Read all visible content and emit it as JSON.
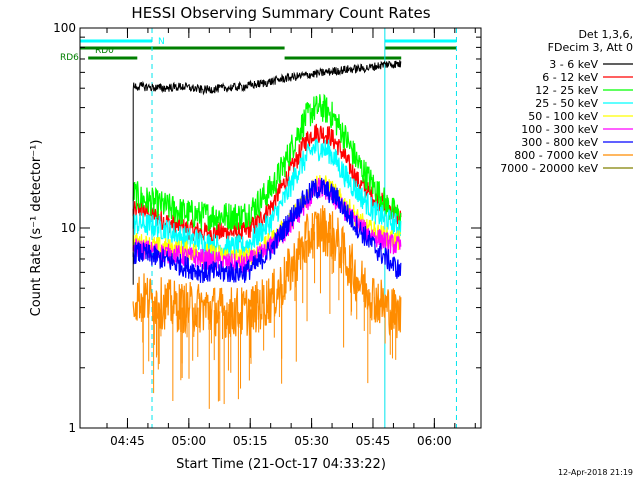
{
  "chart_data": {
    "type": "line",
    "title": "HESSI Observing Summary Count Rates",
    "xlabel": "Start Time (21-Oct-17 04:33:22)",
    "ylabel": "Count Rate (s⁻¹ detector⁻¹)",
    "y_scale": "log",
    "ylim": [
      1,
      100
    ],
    "xlim_minutes_since_0433": [
      0,
      98
    ],
    "x_tick_labels": [
      "04:45",
      "05:00",
      "05:15",
      "05:30",
      "05:45",
      "06:00"
    ],
    "x_tick_minutes": [
      11.6,
      26.6,
      41.6,
      56.6,
      71.6,
      86.6
    ],
    "y_tick_labels": [
      "1",
      "10",
      "100"
    ],
    "y_tick_values": [
      1,
      10,
      100
    ],
    "legend_header": [
      "Det 1,3,6,",
      "FDecim 3, Att 0"
    ],
    "legend_position": "right",
    "footer_timestamp": "12-Apr-2018 21:19",
    "flag_labels": {
      "n": "N",
      "rd0": "RD0",
      "rd6": "RD6"
    },
    "vertical_lines": {
      "solid_cyan_minutes": [
        0,
        74.5
      ],
      "dashed_cyan_minutes": [
        17.6,
        92
      ]
    },
    "series": [
      {
        "name": "3 - 6 keV",
        "color": "#000000",
        "x": [
          13,
          15,
          20,
          25,
          30,
          35,
          40,
          45,
          50,
          55,
          60,
          65,
          70,
          75,
          78.5
        ],
        "y": [
          51,
          51,
          50,
          51,
          49,
          50,
          51,
          53,
          56,
          58,
          60,
          62,
          63,
          66,
          66
        ]
      },
      {
        "name": "6 - 12 keV",
        "color": "#ff0000",
        "x": [
          13,
          15,
          20,
          25,
          30,
          35,
          40,
          43,
          47,
          50,
          53,
          55,
          57,
          59,
          61,
          63,
          65,
          68,
          72,
          75,
          78.5
        ],
        "y": [
          12,
          12.5,
          11,
          10,
          9.5,
          9.5,
          9.5,
          10.5,
          13,
          17,
          22,
          27,
          30,
          30,
          29,
          26,
          22,
          17,
          14,
          13,
          11
        ]
      },
      {
        "name": "12 - 25 keV",
        "color": "#00ff00",
        "x": [
          13,
          15,
          20,
          25,
          30,
          35,
          40,
          43,
          47,
          50,
          53,
          55,
          57,
          59,
          61,
          63,
          65,
          68,
          72,
          75,
          78.5
        ],
        "y": [
          15,
          14,
          13,
          12,
          11.5,
          11.5,
          11.5,
          13,
          16,
          21,
          29,
          35,
          39,
          40,
          38,
          33,
          28,
          21,
          16,
          13,
          11
        ]
      },
      {
        "name": "25 - 50 keV",
        "color": "#00ffff",
        "x": [
          13,
          15,
          20,
          25,
          30,
          35,
          40,
          43,
          47,
          50,
          53,
          55,
          57,
          59,
          61,
          63,
          65,
          68,
          72,
          75,
          78.5
        ],
        "y": [
          10.5,
          10.5,
          10,
          9,
          8.5,
          8,
          8,
          9,
          11,
          14,
          19,
          22,
          25,
          25,
          24,
          21,
          18,
          15,
          12,
          11,
          10
        ]
      },
      {
        "name": "50 - 100 keV",
        "color": "#ffff00",
        "x": [
          13,
          20,
          30,
          40,
          45,
          50,
          55,
          58,
          61,
          65,
          70,
          75,
          78.5
        ],
        "y": [
          8.5,
          8,
          7.5,
          7,
          8,
          10,
          14,
          17,
          16,
          13,
          10,
          9,
          8.5
        ]
      },
      {
        "name": "100 - 300 keV",
        "color": "#ff00ff",
        "x": [
          13,
          20,
          30,
          40,
          45,
          50,
          55,
          58,
          61,
          65,
          70,
          75,
          78.5
        ],
        "y": [
          8,
          7.5,
          7,
          6.5,
          7.5,
          9.5,
          13,
          16,
          15,
          12,
          9.5,
          8.5,
          8
        ]
      },
      {
        "name": "300 - 800 keV",
        "color": "#0000ff",
        "x": [
          13,
          15,
          20,
          25,
          30,
          35,
          40,
          43,
          47,
          50,
          53,
          55,
          57,
          59,
          61,
          63,
          65,
          68,
          72,
          75,
          78.5
        ],
        "y": [
          7.5,
          7.5,
          7,
          6.5,
          6,
          6,
          6,
          6.5,
          8,
          10,
          12.5,
          14,
          15.5,
          16,
          15,
          14,
          12,
          10,
          8,
          7,
          6
        ]
      },
      {
        "name": "800 - 7000 keV",
        "color": "#ff8c00",
        "x": [
          13,
          15,
          20,
          25,
          30,
          35,
          40,
          43,
          47,
          50,
          53,
          55,
          57,
          59,
          61,
          63,
          65,
          68,
          72,
          75,
          78.5
        ],
        "y": [
          4.5,
          4.5,
          4.2,
          4,
          4,
          3.8,
          3.8,
          4,
          4.5,
          5.5,
          7,
          8.5,
          9.5,
          10,
          9.5,
          8.5,
          7,
          5.5,
          4.5,
          4,
          3.6
        ]
      },
      {
        "name": "7000 - 20000 keV",
        "color": "#808000",
        "x": [],
        "y": []
      }
    ],
    "colors": {
      "axes": "#000000",
      "cyan_lines": "#00e5ee",
      "green_flags": "#007f00",
      "attenuator_bar": "#00ffff"
    }
  }
}
